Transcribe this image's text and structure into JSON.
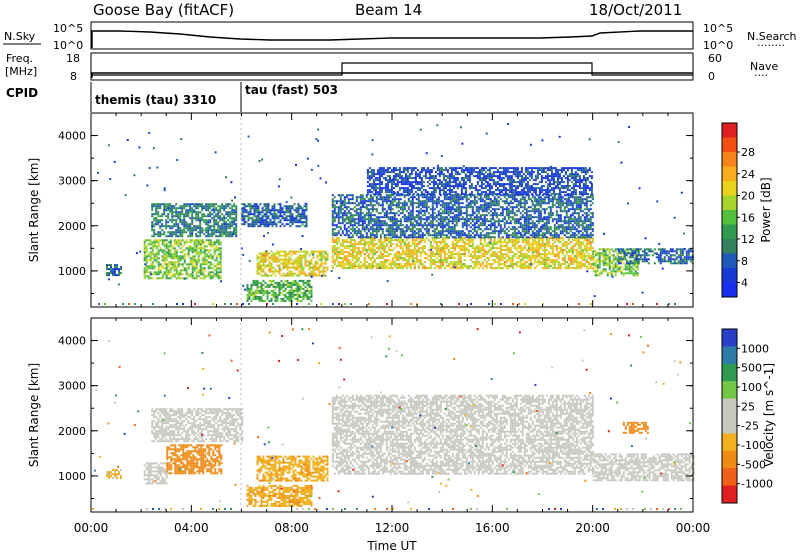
{
  "header": {
    "station": "Goose Bay (fitACF)",
    "beam": "Beam 14",
    "date": "18/Oct/2011"
  },
  "status_panels": {
    "nsky_label": "N.Sky",
    "nsky_ticks": [
      "10^5",
      "10^0"
    ],
    "nsearch_label": "N.Search",
    "nsearch_dots": "........",
    "nsearch_ticks": [
      "10^5",
      "10^0"
    ],
    "freq_label": "Freq.",
    "freq_unit": "[MHz]",
    "freq_ticks": [
      "18",
      "8"
    ],
    "nave_label": "Nave",
    "nave_dots": "....",
    "nave_ticks": [
      "60",
      "0"
    ],
    "cpid_label": "CPID",
    "cpid_modes": [
      "themis (tau) 3310",
      "tau (fast) 503"
    ]
  },
  "colorbars": {
    "power": {
      "title": "Power [dB]",
      "ticks": [
        "28",
        "24",
        "20",
        "16",
        "12",
        "8",
        "4"
      ],
      "colors": [
        "#e02020",
        "#f25010",
        "#f6821a",
        "#f8ae1c",
        "#e8d21c",
        "#a6d42c",
        "#52c03a",
        "#2f9a50",
        "#33805c",
        "#1e58b8",
        "#1838d8",
        "#1a2ef0"
      ]
    },
    "velocity": {
      "title": "Velocity [m s^-1]",
      "ticks": [
        "1000",
        "500",
        "100",
        "25",
        "-25",
        "-100",
        "-500",
        "-1000"
      ],
      "colors": [
        "#2a3fc8",
        "#2e7ba8",
        "#2f9a50",
        "#74c648",
        "#c8c8c0",
        "#c8c8c0",
        "#f0b020",
        "#f08a14",
        "#f06018",
        "#e02020"
      ]
    }
  },
  "chart_data": [
    {
      "type": "heatmap",
      "name": "power",
      "ylabel": "Slant Range [km]",
      "xlim": [
        0,
        24
      ],
      "ylim": [
        200,
        4500
      ],
      "yticks": [
        "1000",
        "2000",
        "3000",
        "4000"
      ],
      "regions": [
        {
          "t0": 0.6,
          "t1": 1.2,
          "r0": 900,
          "r1": 1150,
          "val": 8
        },
        {
          "t0": 2.1,
          "t1": 5.2,
          "r0": 850,
          "r1": 1700,
          "val": 16
        },
        {
          "t0": 2.4,
          "t1": 5.8,
          "r0": 1750,
          "r1": 2500,
          "val": 10
        },
        {
          "t0": 6.0,
          "t1": 8.6,
          "r0": 2000,
          "r1": 2500,
          "val": 8
        },
        {
          "t0": 6.6,
          "t1": 9.4,
          "r0": 900,
          "r1": 1450,
          "val": 20
        },
        {
          "t0": 6.2,
          "t1": 8.8,
          "r0": 350,
          "r1": 800,
          "val": 14
        },
        {
          "t0": 9.6,
          "t1": 20.0,
          "r0": 1050,
          "r1": 1750,
          "val": 20
        },
        {
          "t0": 9.6,
          "t1": 20.0,
          "r0": 1750,
          "r1": 2700,
          "val": 8
        },
        {
          "t0": 11.0,
          "t1": 20.0,
          "r0": 2700,
          "r1": 3300,
          "val": 6
        },
        {
          "t0": 20.0,
          "t1": 21.8,
          "r0": 900,
          "r1": 1500,
          "val": 16
        },
        {
          "t0": 21.0,
          "t1": 24.0,
          "r0": 1150,
          "r1": 1500,
          "val": 8
        }
      ]
    },
    {
      "type": "heatmap",
      "name": "velocity",
      "ylabel": "Slant Range [km]",
      "xlabel": "Time UT",
      "xlim": [
        0,
        24
      ],
      "ylim": [
        200,
        4500
      ],
      "yticks": [
        "1000",
        "2000",
        "3000",
        "4000"
      ],
      "xticks": [
        "00:00",
        "04:00",
        "08:00",
        "12:00",
        "16:00",
        "20:00",
        "00:00"
      ],
      "regions": [
        {
          "t0": 0.6,
          "t1": 1.2,
          "r0": 950,
          "r1": 1150,
          "val": -100
        },
        {
          "t0": 2.1,
          "t1": 3.0,
          "r0": 850,
          "r1": 1300,
          "val": 0
        },
        {
          "t0": 3.0,
          "t1": 5.2,
          "r0": 1050,
          "r1": 1700,
          "val": -300
        },
        {
          "t0": 2.4,
          "t1": 6.0,
          "r0": 1750,
          "r1": 2500,
          "val": 0
        },
        {
          "t0": 6.6,
          "t1": 9.4,
          "r0": 900,
          "r1": 1450,
          "val": -150
        },
        {
          "t0": 6.2,
          "t1": 8.8,
          "r0": 350,
          "r1": 800,
          "val": -150
        },
        {
          "t0": 9.6,
          "t1": 20.0,
          "r0": 1050,
          "r1": 2800,
          "val": 0
        },
        {
          "t0": 20.0,
          "t1": 24.0,
          "r0": 900,
          "r1": 1500,
          "val": 0
        },
        {
          "t0": 21.2,
          "t1": 22.2,
          "r0": 1950,
          "r1": 2200,
          "val": -300
        }
      ]
    }
  ]
}
